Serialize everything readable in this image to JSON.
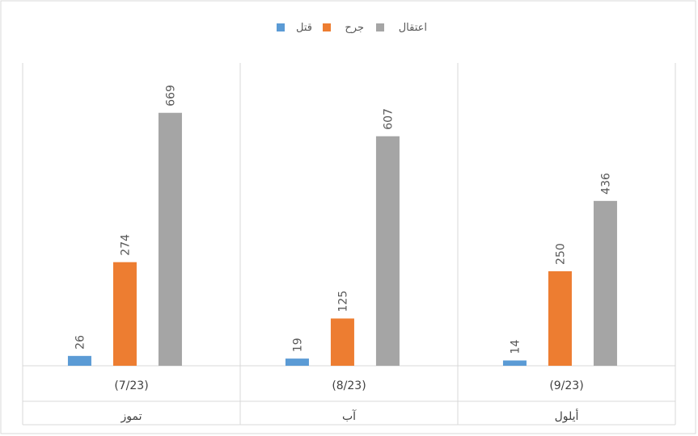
{
  "chart_data": {
    "type": "bar",
    "categories": [
      {
        "group": "تموز",
        "period": "(7/23)"
      },
      {
        "group": "آب",
        "period": "(8/23)"
      },
      {
        "group": "أيلول",
        "period": "(9/23)"
      }
    ],
    "series": [
      {
        "name": "قتل",
        "color": "#5B9BD5",
        "values": [
          26,
          19,
          14
        ]
      },
      {
        "name": "جرح",
        "color": "#ED7D31",
        "values": [
          274,
          125,
          250
        ]
      },
      {
        "name": "اعتقال",
        "color": "#A5A5A5",
        "values": [
          669,
          607,
          436
        ]
      }
    ],
    "ylim": [
      0,
      800
    ],
    "legend_position": "top",
    "grid": false,
    "data_labels": true
  }
}
